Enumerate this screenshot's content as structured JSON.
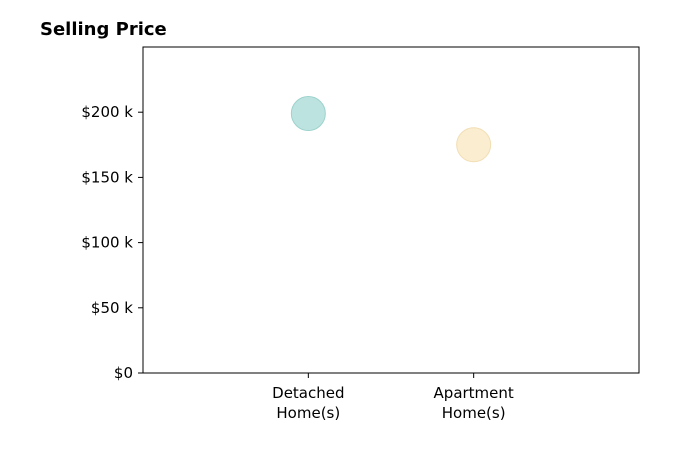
{
  "chart_data": {
    "type": "scatter",
    "title": "Selling Price",
    "xlabel": "",
    "ylabel": "",
    "categories": [
      [
        "Detached",
        "Home(s)"
      ],
      [
        "Apartment",
        "Home(s)"
      ]
    ],
    "values": [
      199000,
      175000
    ],
    "point_colors": [
      "#b2dfdb",
      "#faebc8"
    ],
    "point_edge_colors": [
      "#8ccbc4",
      "#efd9a8"
    ],
    "ylim": [
      0,
      250000
    ],
    "yticks": [
      0,
      50000,
      100000,
      150000,
      200000
    ],
    "ytick_labels": [
      "$0",
      "$50 k",
      "$100 k",
      "$150 k",
      "$200 k"
    ],
    "grid": false,
    "legend": "none"
  }
}
